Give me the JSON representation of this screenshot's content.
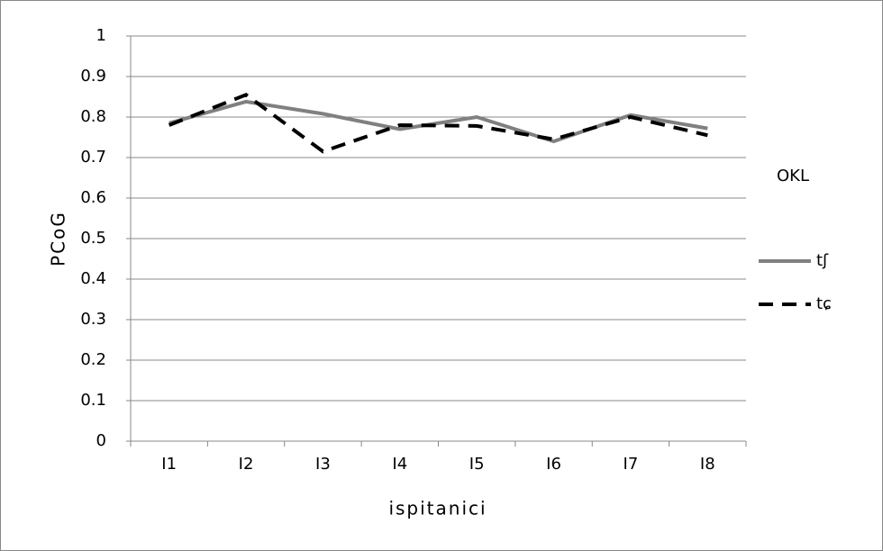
{
  "chart_data": {
    "type": "line",
    "title": "OKL",
    "x_label": "ispitanici",
    "y_label": "PCoG",
    "categories": [
      "I1",
      "I2",
      "I3",
      "I4",
      "I5",
      "I6",
      "I7",
      "I8"
    ],
    "series": [
      {
        "name": "tʃ",
        "color": "#808080",
        "linestyle": "solid",
        "values": [
          0.785,
          0.838,
          0.808,
          0.77,
          0.8,
          0.74,
          0.805,
          0.772
        ]
      },
      {
        "name": "tɕ",
        "color": "#000000",
        "linestyle": "dashed",
        "values": [
          0.78,
          0.855,
          0.715,
          0.78,
          0.778,
          0.745,
          0.8,
          0.755
        ]
      }
    ],
    "ylim": [
      0,
      1
    ],
    "yticks": [
      0,
      0.1,
      0.2,
      0.3,
      0.4,
      0.5,
      0.6,
      0.7,
      0.8,
      0.9,
      1
    ],
    "grid": true,
    "legend": "right"
  }
}
